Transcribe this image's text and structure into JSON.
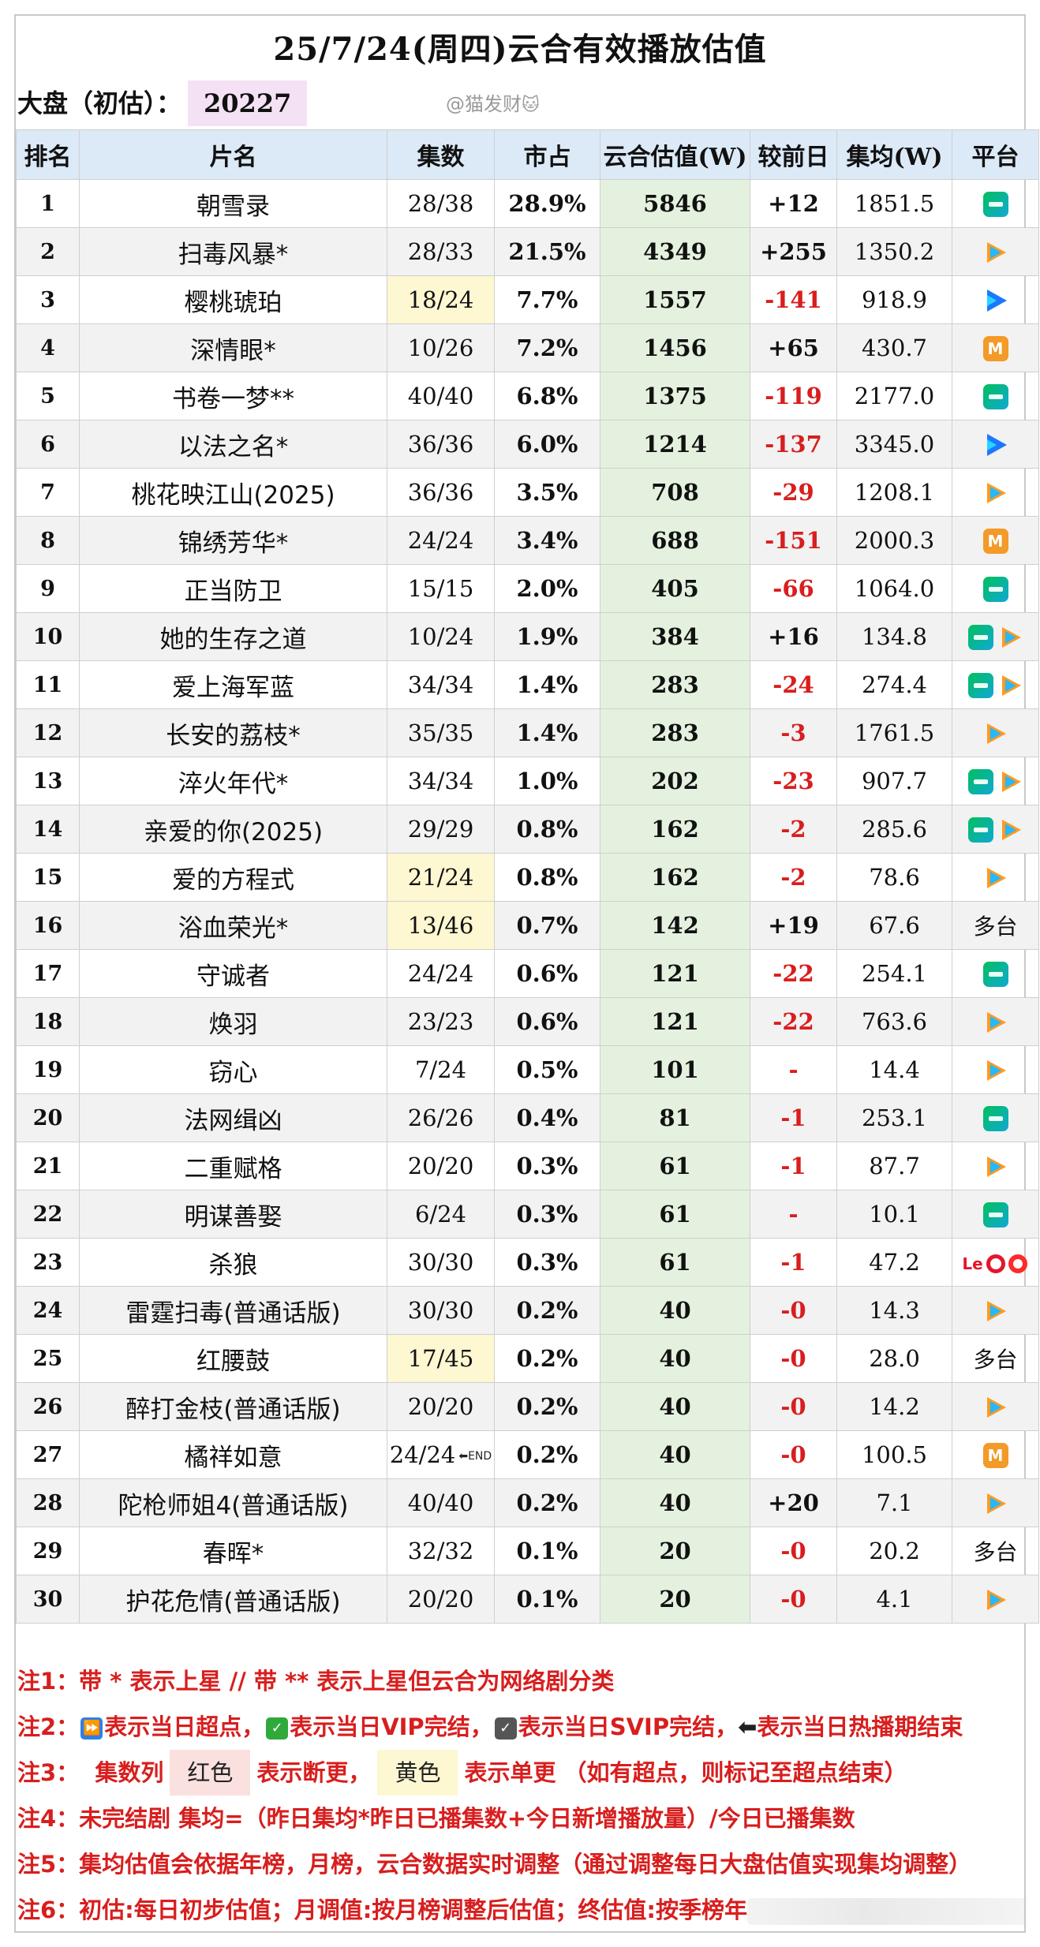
{
  "title": "25/7/24(周四)云合有效播放估值",
  "dapan": {
    "label": "大盘（初估）：",
    "value": "20227"
  },
  "watermark": {
    "text": "@猫发财",
    "icon": "cat-emoji"
  },
  "table": {
    "headers": [
      "排名",
      "片名",
      "集数",
      "市占",
      "云合估值(W)",
      "较前日",
      "集均(W)",
      "平台"
    ],
    "rows": [
      {
        "rank": "1",
        "name": "朝雪录",
        "eps": "28/38",
        "share": "28.9%",
        "est": "5846",
        "chg": "+12",
        "avg": "1851.5",
        "plat": [
          "iqiyi"
        ]
      },
      {
        "rank": "2",
        "name": "扫毒风暴*",
        "eps": "28/33",
        "share": "21.5%",
        "est": "4349",
        "chg": "+255",
        "avg": "1350.2",
        "plat": [
          "tencent"
        ]
      },
      {
        "rank": "3",
        "name": "樱桃琥珀",
        "eps": "18/24",
        "share": "7.7%",
        "est": "1557",
        "chg": "-141",
        "avg": "918.9",
        "plat": [
          "youku"
        ],
        "ep_highlight": "yellow"
      },
      {
        "rank": "4",
        "name": "深情眼*",
        "eps": "10/26",
        "share": "7.2%",
        "est": "1456",
        "chg": "+65",
        "avg": "430.7",
        "plat": [
          "mango"
        ]
      },
      {
        "rank": "5",
        "name": "书卷一梦**",
        "eps": "40/40",
        "share": "6.8%",
        "est": "1375",
        "chg": "-119",
        "avg": "2177.0",
        "plat": [
          "iqiyi"
        ]
      },
      {
        "rank": "6",
        "name": "以法之名*",
        "eps": "36/36",
        "share": "6.0%",
        "est": "1214",
        "chg": "-137",
        "avg": "3345.0",
        "plat": [
          "youku"
        ]
      },
      {
        "rank": "7",
        "name": "桃花映江山(2025)",
        "eps": "36/36",
        "share": "3.5%",
        "est": "708",
        "chg": "-29",
        "avg": "1208.1",
        "plat": [
          "tencent"
        ]
      },
      {
        "rank": "8",
        "name": "锦绣芳华*",
        "eps": "24/24",
        "share": "3.4%",
        "est": "688",
        "chg": "-151",
        "avg": "2000.3",
        "plat": [
          "mango"
        ]
      },
      {
        "rank": "9",
        "name": "正当防卫",
        "eps": "15/15",
        "share": "2.0%",
        "est": "405",
        "chg": "-66",
        "avg": "1064.0",
        "plat": [
          "iqiyi"
        ]
      },
      {
        "rank": "10",
        "name": "她的生存之道",
        "eps": "10/24",
        "share": "1.9%",
        "est": "384",
        "chg": "+16",
        "avg": "134.8",
        "plat": [
          "iqiyi",
          "tencent"
        ]
      },
      {
        "rank": "11",
        "name": "爱上海军蓝",
        "eps": "34/34",
        "share": "1.4%",
        "est": "283",
        "chg": "-24",
        "avg": "274.4",
        "plat": [
          "iqiyi",
          "tencent"
        ]
      },
      {
        "rank": "12",
        "name": "长安的荔枝*",
        "eps": "35/35",
        "share": "1.4%",
        "est": "283",
        "chg": "-3",
        "avg": "1761.5",
        "plat": [
          "tencent"
        ]
      },
      {
        "rank": "13",
        "name": "淬火年代*",
        "eps": "34/34",
        "share": "1.0%",
        "est": "202",
        "chg": "-23",
        "avg": "907.7",
        "plat": [
          "iqiyi",
          "tencent"
        ]
      },
      {
        "rank": "14",
        "name": "亲爱的你(2025)",
        "eps": "29/29",
        "share": "0.8%",
        "est": "162",
        "chg": "-2",
        "avg": "285.6",
        "plat": [
          "iqiyi",
          "tencent"
        ]
      },
      {
        "rank": "15",
        "name": "爱的方程式",
        "eps": "21/24",
        "share": "0.8%",
        "est": "162",
        "chg": "-2",
        "avg": "78.6",
        "plat": [
          "tencent"
        ],
        "ep_highlight": "yellow"
      },
      {
        "rank": "16",
        "name": "浴血荣光*",
        "eps": "13/46",
        "share": "0.7%",
        "est": "142",
        "chg": "+19",
        "avg": "67.6",
        "plat_text": "多台",
        "ep_highlight": "yellow"
      },
      {
        "rank": "17",
        "name": "守诚者",
        "eps": "24/24",
        "share": "0.6%",
        "est": "121",
        "chg": "-22",
        "avg": "254.1",
        "plat": [
          "iqiyi"
        ]
      },
      {
        "rank": "18",
        "name": "焕羽",
        "eps": "23/23",
        "share": "0.6%",
        "est": "121",
        "chg": "-22",
        "avg": "763.6",
        "plat": [
          "tencent"
        ]
      },
      {
        "rank": "19",
        "name": "窃心",
        "eps": "7/24",
        "share": "0.5%",
        "est": "101",
        "chg": "-",
        "avg": "14.4",
        "plat": [
          "tencent"
        ]
      },
      {
        "rank": "20",
        "name": "法网缉凶",
        "eps": "26/26",
        "share": "0.4%",
        "est": "81",
        "chg": "-1",
        "avg": "253.1",
        "plat": [
          "iqiyi"
        ]
      },
      {
        "rank": "21",
        "name": "二重赋格",
        "eps": "20/20",
        "share": "0.3%",
        "est": "61",
        "chg": "-1",
        "avg": "87.7",
        "plat": [
          "tencent"
        ]
      },
      {
        "rank": "22",
        "name": "明谋善娶",
        "eps": "6/24",
        "share": "0.3%",
        "est": "61",
        "chg": "-",
        "avg": "10.1",
        "plat": [
          "iqiyi"
        ]
      },
      {
        "rank": "23",
        "name": "杀狼",
        "eps": "30/30",
        "share": "0.3%",
        "est": "61",
        "chg": "-1",
        "avg": "47.2",
        "plat": [
          "letv",
          "circle-a",
          "circle-b"
        ],
        "letv_text": "Le"
      },
      {
        "rank": "24",
        "name": "雷霆扫毒(普通话版)",
        "eps": "30/30",
        "share": "0.2%",
        "est": "40",
        "chg": "-0",
        "avg": "14.3",
        "plat": [
          "tencent"
        ]
      },
      {
        "rank": "25",
        "name": "红腰鼓",
        "eps": "17/45",
        "share": "0.2%",
        "est": "40",
        "chg": "-0",
        "avg": "28.0",
        "plat_text": "多台",
        "ep_highlight": "yellow"
      },
      {
        "rank": "26",
        "name": "醉打金枝(普通话版)",
        "eps": "20/20",
        "share": "0.2%",
        "est": "40",
        "chg": "-0",
        "avg": "14.2",
        "plat": [
          "tencent"
        ]
      },
      {
        "rank": "27",
        "name": "橘祥如意",
        "eps": "24/24",
        "share": "0.2%",
        "est": "40",
        "chg": "-0",
        "avg": "100.5",
        "plat": [
          "mango"
        ],
        "end_mark": "⬅END"
      },
      {
        "rank": "28",
        "name": "陀枪师姐4(普通话版)",
        "eps": "40/40",
        "share": "0.2%",
        "est": "40",
        "chg": "+20",
        "avg": "7.1",
        "plat": [
          "tencent"
        ]
      },
      {
        "rank": "29",
        "name": "春晖*",
        "eps": "32/32",
        "share": "0.1%",
        "est": "20",
        "chg": "-0",
        "avg": "20.2",
        "plat_text": "多台"
      },
      {
        "rank": "30",
        "name": "护花危情(普通话版)",
        "eps": "20/20",
        "share": "0.1%",
        "est": "20",
        "chg": "-0",
        "avg": "4.1",
        "plat": [
          "tencent"
        ]
      }
    ]
  },
  "notes": {
    "n1": "注1：带 * 表示上星 // 带 ** 表示上星但云合为网络剧分类",
    "n2": {
      "prefix": "注2：",
      "a": "表示当日超点，",
      "b": "表示当日VIP完结，",
      "c": "表示当日SVIP完结，",
      "d": "表示当日热播期结束"
    },
    "n3": {
      "prefix": "注3：",
      "col": "集数列",
      "red": "红色",
      "red_desc": "表示断更，",
      "yellow": "黄色",
      "yellow_desc": "表示单更 （如有超点，则标记至超点结束）"
    },
    "n4": "注4：未完结剧 集均=（昨日集均*昨日已播集数+今日新增播放量）/今日已播集数",
    "n5": "注5：集均估值会依据年榜，月榜，云合数据实时调整（通过调整每日大盘估值实现集均调整）",
    "n6": "注6：初估:每日初步估值；月调值:按月榜调整后估值；终估值:按季榜年"
  }
}
